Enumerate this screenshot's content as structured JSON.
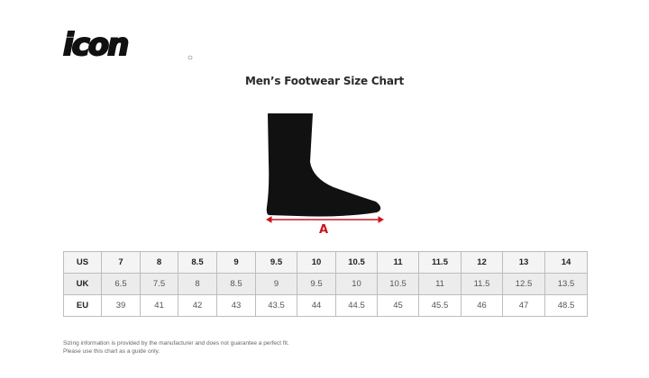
{
  "brand": {
    "logo_text": "icon"
  },
  "title": "Men’s Footwear Size Chart",
  "diagram": {
    "measure_label": "A",
    "measure_color": "#d0121b"
  },
  "table": {
    "rows": [
      {
        "label": "US",
        "values": [
          "7",
          "8",
          "8.5",
          "9",
          "9.5",
          "10",
          "10.5",
          "11",
          "11.5",
          "12",
          "13",
          "14"
        ]
      },
      {
        "label": "UK",
        "values": [
          "6.5",
          "7.5",
          "8",
          "8.5",
          "9",
          "9.5",
          "10",
          "10.5",
          "11",
          "11.5",
          "12.5",
          "13.5"
        ]
      },
      {
        "label": "EU",
        "values": [
          "39",
          "41",
          "42",
          "43",
          "43.5",
          "44",
          "44.5",
          "45",
          "45.5",
          "46",
          "47",
          "48.5"
        ]
      }
    ]
  },
  "note": {
    "line1": "Sizing information is provided by the manufacturer and does not guarantee a perfect fit.",
    "line2": "Please use this chart as a guide only."
  }
}
